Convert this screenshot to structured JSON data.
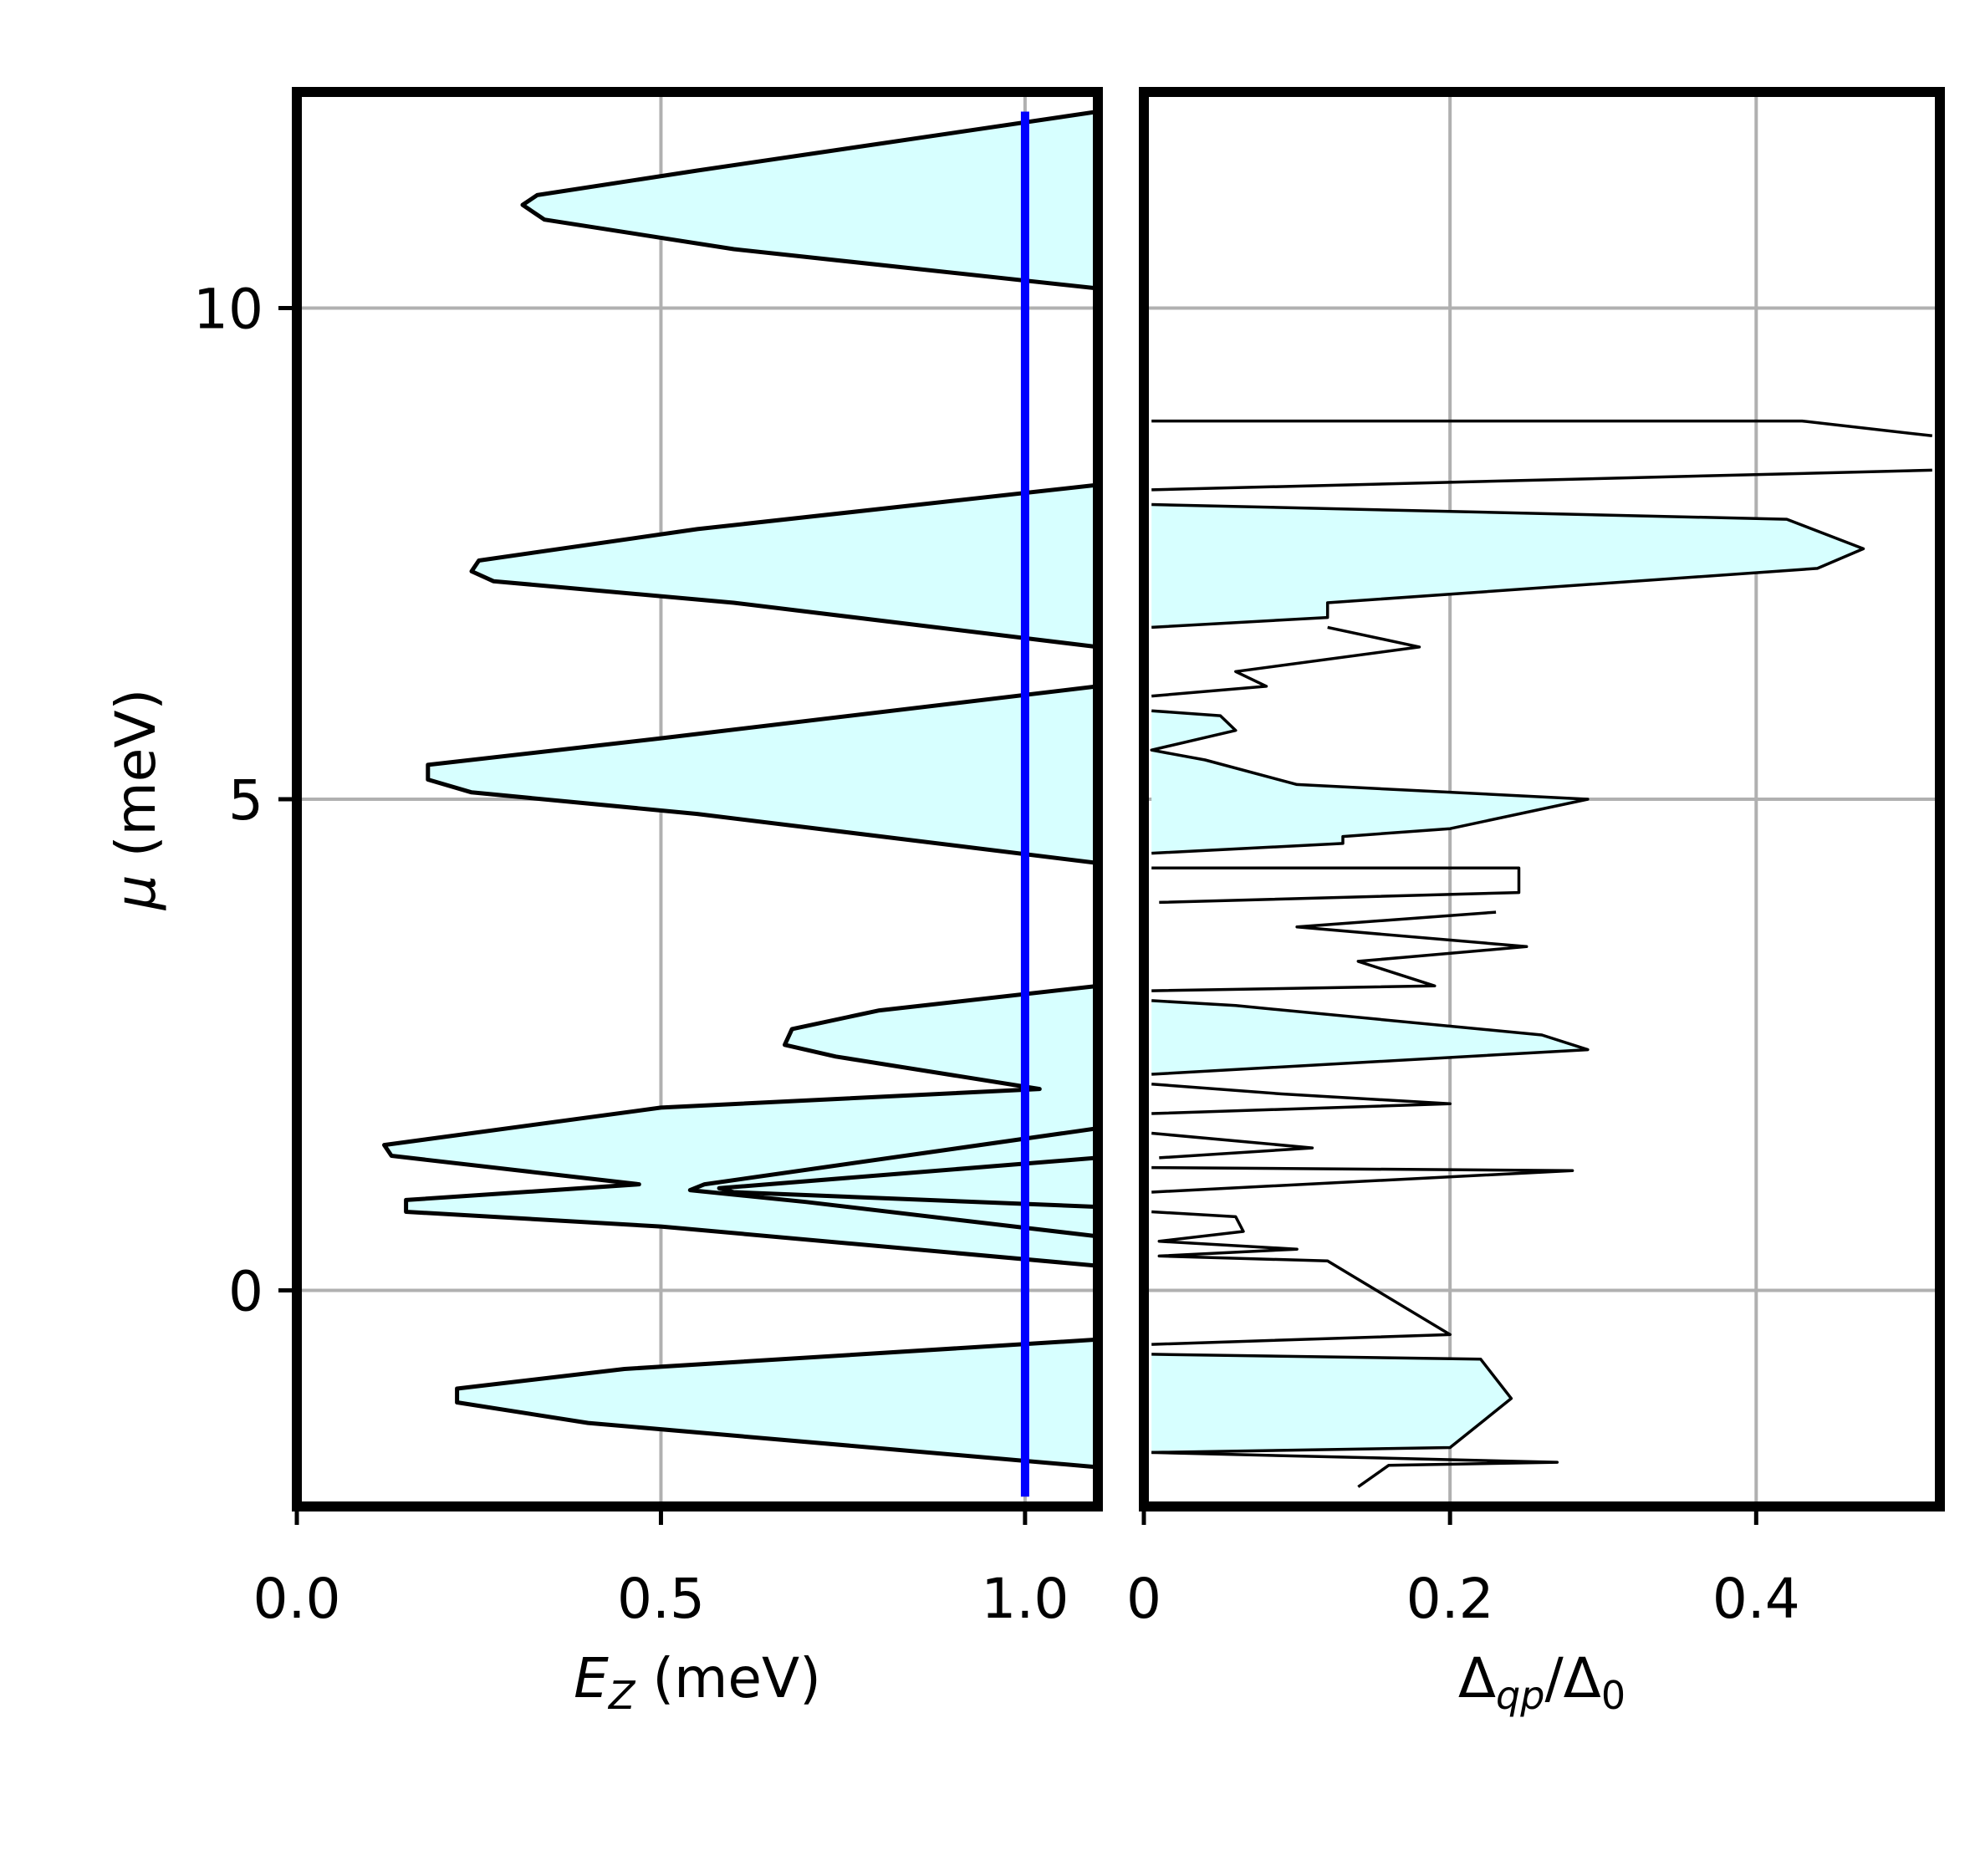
{
  "chart_data": [
    {
      "type": "area",
      "xlabel": "E_Z (meV)",
      "ylabel": "μ (meV)",
      "xlim": [
        0.0,
        1.1
      ],
      "ylim": [
        -2.2,
        12.2
      ],
      "grid": true,
      "x_ticks": [
        {
          "v": 0.0,
          "label": "0.0"
        },
        {
          "v": 0.5,
          "label": "0.5"
        },
        {
          "v": 1.0,
          "label": "1.0"
        }
      ],
      "y_ticks": [
        {
          "v": 0,
          "label": "0"
        },
        {
          "v": 5,
          "label": "5"
        },
        {
          "v": 10,
          "label": "10"
        }
      ],
      "fill_color": "#d7ffff",
      "marker_line": {
        "x": 1.0,
        "y_range": [
          -2.1,
          12.0
        ],
        "color": "#0000ff"
      },
      "series": [
        {
          "values": [
            [
              1.1,
              12.0
            ],
            [
              0.55,
              11.4
            ],
            [
              0.33,
              11.15
            ],
            [
              0.31,
              11.05
            ],
            [
              0.34,
              10.9
            ],
            [
              0.6,
              10.6
            ],
            [
              1.1,
              10.2
            ]
          ]
        },
        {
          "values": [
            [
              1.1,
              8.2
            ],
            [
              0.55,
              7.75
            ],
            [
              0.25,
              7.43
            ],
            [
              0.24,
              7.32
            ],
            [
              0.27,
              7.22
            ],
            [
              0.6,
              7.0
            ],
            [
              1.1,
              6.55
            ]
          ]
        },
        {
          "values": [
            [
              1.1,
              6.15
            ],
            [
              0.5,
              5.62
            ],
            [
              0.18,
              5.35
            ],
            [
              0.18,
              5.2
            ],
            [
              0.24,
              5.07
            ],
            [
              0.55,
              4.85
            ],
            [
              1.1,
              4.35
            ]
          ]
        },
        {
          "values": [
            [
              1.1,
              3.1
            ],
            [
              0.8,
              2.85
            ],
            [
              0.68,
              2.66
            ],
            [
              0.67,
              2.5
            ],
            [
              0.74,
              2.38
            ],
            [
              1.02,
              2.05
            ],
            [
              0.5,
              1.86
            ],
            [
              0.12,
              1.48
            ],
            [
              0.13,
              1.37
            ],
            [
              0.47,
              1.08
            ],
            [
              0.15,
              0.92
            ],
            [
              0.15,
              0.8
            ],
            [
              0.5,
              0.65
            ],
            [
              1.1,
              0.25
            ]
          ]
        },
        {
          "values": [
            [
              1.1,
              1.65
            ],
            [
              0.56,
              1.08
            ],
            [
              0.54,
              1.02
            ],
            [
              0.7,
              0.9
            ],
            [
              1.1,
              0.55
            ]
          ]
        },
        {
          "values": [
            [
              1.1,
              1.35
            ],
            [
              0.58,
              1.04
            ],
            [
              0.6,
              1.0
            ],
            [
              1.1,
              0.85
            ]
          ]
        },
        {
          "values": [
            [
              1.1,
              -0.5
            ],
            [
              0.45,
              -0.8
            ],
            [
              0.22,
              -1.0
            ],
            [
              0.22,
              -1.14
            ],
            [
              0.4,
              -1.35
            ],
            [
              1.1,
              -1.8
            ]
          ]
        }
      ]
    },
    {
      "type": "line",
      "xlabel": "Δ_qp/Δ_0",
      "ylabel": "",
      "xlim": [
        0.0,
        0.52
      ],
      "ylim": [
        -2.2,
        12.2
      ],
      "grid": true,
      "x_ticks": [
        {
          "v": 0,
          "label": "0"
        },
        {
          "v": 0.2,
          "label": "0.2"
        },
        {
          "v": 0.4,
          "label": "0.4"
        }
      ],
      "fill_color": "#d7ffff",
      "series": [
        {
          "values": [
            [
              0.005,
              8.85
            ],
            [
              0.43,
              8.85
            ],
            [
              0.515,
              8.7
            ]
          ]
        },
        {
          "values": [
            [
              0.515,
              8.35
            ],
            [
              0.005,
              8.15
            ]
          ]
        },
        {
          "values": [
            [
              0.005,
              8.0
            ],
            [
              0.42,
              7.85
            ],
            [
              0.47,
              7.55
            ],
            [
              0.44,
              7.35
            ],
            [
              0.12,
              7.0
            ],
            [
              0.12,
              6.85
            ],
            [
              0.005,
              6.75
            ]
          ]
        },
        {
          "values": [
            [
              0.12,
              6.75
            ],
            [
              0.18,
              6.55
            ],
            [
              0.06,
              6.3
            ],
            [
              0.08,
              6.15
            ],
            [
              0.005,
              6.05
            ]
          ]
        },
        {
          "values": [
            [
              0.005,
              5.9
            ],
            [
              0.05,
              5.85
            ],
            [
              0.06,
              5.7
            ],
            [
              0.005,
              5.5
            ],
            [
              0.04,
              5.4
            ],
            [
              0.1,
              5.15
            ],
            [
              0.29,
              5.0
            ],
            [
              0.2,
              4.7
            ],
            [
              0.13,
              4.62
            ],
            [
              0.13,
              4.55
            ],
            [
              0.005,
              4.45
            ]
          ]
        },
        {
          "values": [
            [
              0.005,
              4.3
            ],
            [
              0.245,
              4.3
            ],
            [
              0.245,
              4.05
            ],
            [
              0.01,
              3.95
            ]
          ]
        },
        {
          "values": [
            [
              0.23,
              3.85
            ],
            [
              0.1,
              3.7
            ],
            [
              0.25,
              3.5
            ],
            [
              0.14,
              3.35
            ],
            [
              0.19,
              3.1
            ],
            [
              0.005,
              3.05
            ]
          ]
        },
        {
          "values": [
            [
              0.005,
              2.95
            ],
            [
              0.06,
              2.9
            ],
            [
              0.26,
              2.6
            ],
            [
              0.29,
              2.45
            ],
            [
              0.005,
              2.2
            ]
          ]
        },
        {
          "values": [
            [
              0.005,
              2.1
            ],
            [
              0.09,
              2.0
            ],
            [
              0.2,
              1.9
            ],
            [
              0.005,
              1.8
            ]
          ]
        },
        {
          "values": [
            [
              0.005,
              1.6
            ],
            [
              0.11,
              1.45
            ],
            [
              0.01,
              1.35
            ]
          ]
        },
        {
          "values": [
            [
              0.005,
              1.25
            ],
            [
              0.28,
              1.22
            ],
            [
              0.005,
              1.0
            ]
          ]
        },
        {
          "values": [
            [
              0.005,
              0.8
            ],
            [
              0.06,
              0.75
            ],
            [
              0.065,
              0.6
            ],
            [
              0.01,
              0.5
            ],
            [
              0.1,
              0.42
            ],
            [
              0.01,
              0.35
            ],
            [
              0.12,
              0.3
            ],
            [
              0.2,
              -0.45
            ],
            [
              0.005,
              -0.55
            ]
          ]
        },
        {
          "values": [
            [
              0.005,
              -0.65
            ],
            [
              0.22,
              -0.7
            ],
            [
              0.24,
              -1.1
            ],
            [
              0.2,
              -1.6
            ],
            [
              0.005,
              -1.65
            ]
          ]
        },
        {
          "values": [
            [
              0.005,
              -1.65
            ],
            [
              0.27,
              -1.75
            ],
            [
              0.16,
              -1.78
            ],
            [
              0.14,
              -2.0
            ]
          ]
        }
      ],
      "filled_regions": [
        {
          "values": [
            [
              0.005,
              8.0
            ],
            [
              0.42,
              7.85
            ],
            [
              0.47,
              7.55
            ],
            [
              0.44,
              7.35
            ],
            [
              0.12,
              7.0
            ],
            [
              0.12,
              6.85
            ],
            [
              0.005,
              6.75
            ]
          ]
        },
        {
          "values": [
            [
              0.005,
              5.9
            ],
            [
              0.05,
              5.85
            ],
            [
              0.06,
              5.7
            ],
            [
              0.005,
              5.5
            ]
          ]
        },
        {
          "values": [
            [
              0.005,
              5.5
            ],
            [
              0.04,
              5.4
            ],
            [
              0.1,
              5.15
            ],
            [
              0.29,
              5.0
            ],
            [
              0.2,
              4.7
            ],
            [
              0.13,
              4.62
            ],
            [
              0.13,
              4.55
            ],
            [
              0.005,
              4.45
            ]
          ]
        },
        {
          "values": [
            [
              0.005,
              2.95
            ],
            [
              0.06,
              2.9
            ],
            [
              0.26,
              2.6
            ],
            [
              0.29,
              2.45
            ],
            [
              0.005,
              2.2
            ]
          ]
        },
        {
          "values": [
            [
              0.005,
              -0.65
            ],
            [
              0.22,
              -0.7
            ],
            [
              0.24,
              -1.1
            ],
            [
              0.2,
              -1.6
            ],
            [
              0.005,
              -1.65
            ]
          ]
        }
      ]
    }
  ]
}
